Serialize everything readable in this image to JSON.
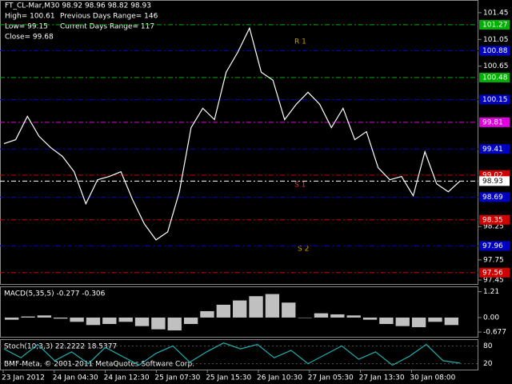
{
  "chart_data": {
    "type": "line",
    "title": "FT_CL-Mar,M30  98.92 98.96 98.82 98.93",
    "info": [
      "High= 100.61",
      "Previous Days Range= 146",
      "Low= 99.15",
      "Current Days Range= 117",
      "Close= 99.68"
    ],
    "annotations": [
      "R 1",
      "S 1",
      "S 2"
    ],
    "color": "#ffffff",
    "values": [
      99.49,
      99.55,
      99.9,
      99.6,
      99.43,
      99.3,
      99.07,
      98.59,
      98.95,
      99.0,
      99.07,
      98.65,
      98.29,
      98.05,
      98.17,
      98.77,
      99.73,
      100.02,
      99.85,
      100.56,
      100.86,
      101.22,
      100.56,
      100.44,
      99.85,
      100.08,
      100.26,
      100.08,
      99.73,
      100.02,
      99.55,
      99.67,
      99.13,
      98.95,
      99.0,
      98.71,
      99.37,
      98.89,
      98.77,
      98.93
    ],
    "ylim": [
      97.39,
      101.64
    ],
    "yticks": [
      101.45,
      101.05,
      100.65,
      98.25,
      97.75,
      97.45
    ],
    "levels": [
      {
        "value": 101.27,
        "color": "#00b000"
      },
      {
        "value": 100.88,
        "color": "#0000c0"
      },
      {
        "value": 100.48,
        "color": "#00b000"
      },
      {
        "value": 100.15,
        "color": "#0000c0"
      },
      {
        "value": 99.81,
        "color": "#e000e0"
      },
      {
        "value": 99.41,
        "color": "#0000c0"
      },
      {
        "value": 99.02,
        "color": "#d00000"
      },
      {
        "value": 98.93,
        "color": "#ffffff"
      },
      {
        "value": 98.69,
        "color": "#0000c0"
      },
      {
        "value": 98.35,
        "color": "#d00000"
      },
      {
        "value": 97.96,
        "color": "#0000c0"
      },
      {
        "value": 97.56,
        "color": "#d00000"
      }
    ],
    "x_labels": [
      "23 Jan 2012",
      "24 Jan 04:30",
      "24 Jan 12:30",
      "25 Jan 07:30",
      "25 Jan 15:30",
      "26 Jan 10:30",
      "27 Jan 05:30",
      "27 Jan 13:30",
      "30 Jan 08:00"
    ],
    "macd": {
      "title": "MACD(5,35,5) -0.277 -0.306",
      "color": "#c0c0c0",
      "values": [
        -0.1,
        0.05,
        0.1,
        -0.05,
        -0.2,
        -0.35,
        -0.3,
        -0.2,
        -0.4,
        -0.55,
        -0.6,
        -0.3,
        0.3,
        0.6,
        0.8,
        1.0,
        1.1,
        0.7,
        0.0,
        0.2,
        0.15,
        0.1,
        -0.1,
        -0.3,
        -0.4,
        -0.45,
        -0.2,
        -0.35
      ],
      "ylim": [
        -0.9,
        1.42
      ],
      "yticks": [
        1.21,
        {
          "value": 0,
          "label": "0.00"
        },
        -0.677
      ]
    },
    "stoch": {
      "title": "Stoch(10,3,3) 22.2222 18.5377",
      "color": "#20b0b0",
      "values": [
        70,
        40,
        85,
        30,
        60,
        20,
        75,
        45,
        15,
        55,
        80,
        25,
        60,
        90,
        70,
        85,
        40,
        65,
        20,
        50,
        80,
        35,
        60,
        15,
        45,
        85,
        30,
        22
      ],
      "ylim": [
        0,
        100
      ],
      "yticks": [
        80,
        20
      ]
    },
    "footer": "BMF-Meta, © 2001-2011 MetaQuotes Software Corp."
  }
}
